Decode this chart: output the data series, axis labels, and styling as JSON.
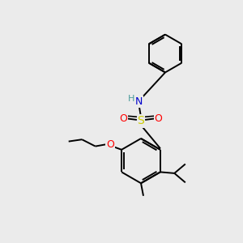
{
  "bg_color": "#ebebeb",
  "line_color": "#000000",
  "bond_width": 1.4,
  "atom_colors": {
    "N": "#0000cc",
    "O_sulfonyl": "#ff0000",
    "O_ether": "#ff0000",
    "S": "#cccc00",
    "H": "#4a9a9a"
  },
  "font_size": 8.5,
  "figsize": [
    3.0,
    3.0
  ],
  "dpi": 100,
  "xlim": [
    0,
    10
  ],
  "ylim": [
    0,
    10
  ]
}
